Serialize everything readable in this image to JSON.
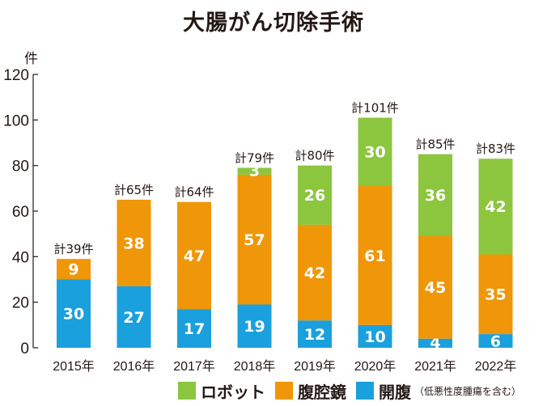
{
  "chart_data": {
    "type": "bar",
    "stacked": true,
    "title": "大腸がん切除手術",
    "ylabel": "件",
    "ylim": [
      0,
      120
    ],
    "yticks": [
      0,
      20,
      40,
      60,
      80,
      100,
      120
    ],
    "grid": false,
    "legend_position": "bottom",
    "categories": [
      "2015年",
      "2016年",
      "2017年",
      "2018年",
      "2019年",
      "2020年",
      "2021年",
      "2022年"
    ],
    "totals": [
      "計39件",
      "計65件",
      "計64件",
      "計79件",
      "計80件",
      "計101件",
      "計85件",
      "計83件"
    ],
    "series": [
      {
        "name": "開腹",
        "color": "#1aa0dc",
        "values": [
          30,
          27,
          17,
          19,
          12,
          10,
          4,
          6
        ]
      },
      {
        "name": "腹腔鏡",
        "color": "#ef9708",
        "values": [
          9,
          38,
          47,
          57,
          42,
          61,
          45,
          35
        ]
      },
      {
        "name": "ロボット",
        "color": "#8cc63f",
        "values": [
          0,
          0,
          0,
          3,
          26,
          30,
          36,
          42
        ]
      }
    ],
    "legend": [
      {
        "label": "ロボット",
        "color": "#8cc63f"
      },
      {
        "label": "腹腔鏡",
        "color": "#ef9708"
      },
      {
        "label": "開腹",
        "color": "#1aa0dc",
        "note": "（低悪性度腫瘍を含む）"
      }
    ]
  }
}
